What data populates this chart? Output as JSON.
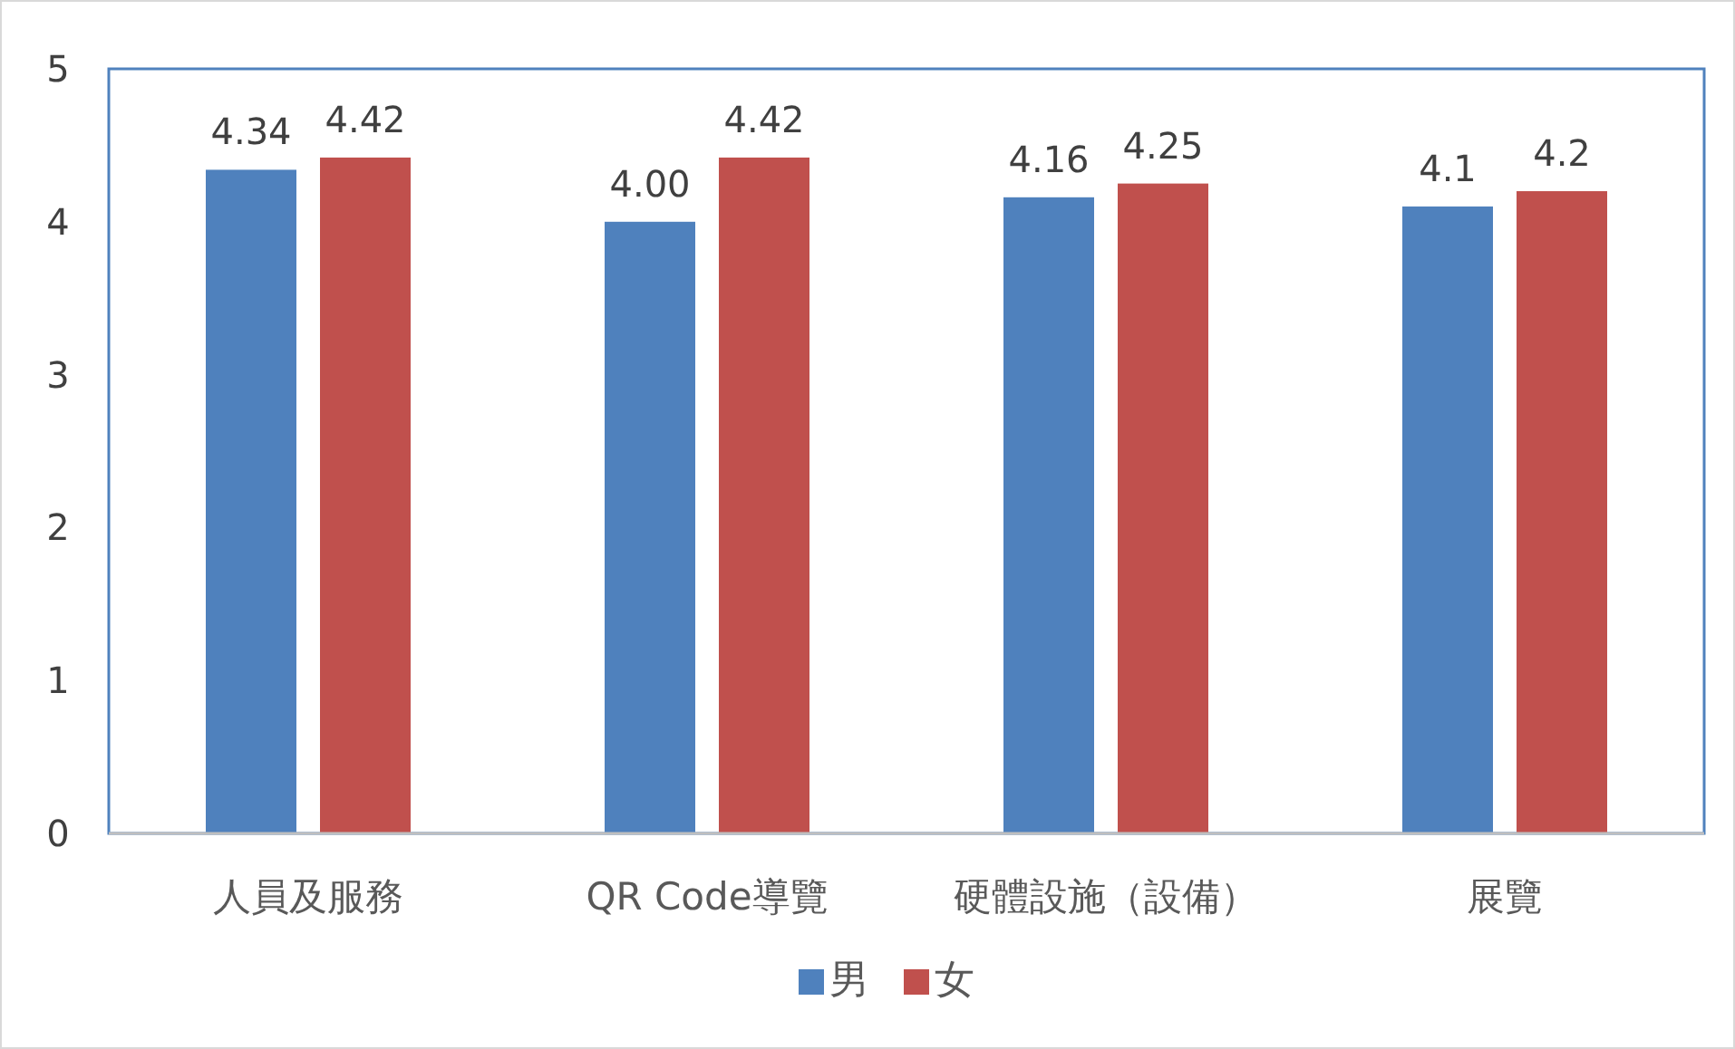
{
  "chart_data": {
    "type": "bar",
    "categories": [
      "人員及服務",
      "QR Code導覽",
      "硬體設施（設備）",
      "展覽"
    ],
    "series": [
      {
        "name": "男",
        "color": "#4f81bd",
        "values": [
          4.34,
          4.0,
          4.16,
          4.1
        ],
        "value_labels": [
          "4.34",
          "4.00",
          "4.16",
          "4.1"
        ]
      },
      {
        "name": "女",
        "color": "#c0504d",
        "values": [
          4.42,
          4.42,
          4.25,
          4.2
        ],
        "value_labels": [
          "4.42",
          "4.42",
          "4.25",
          "4.2"
        ]
      }
    ],
    "ylim": [
      0,
      5
    ],
    "yticks": [
      0,
      1,
      2,
      3,
      4,
      5
    ],
    "grid": false,
    "legend": "bottom"
  }
}
